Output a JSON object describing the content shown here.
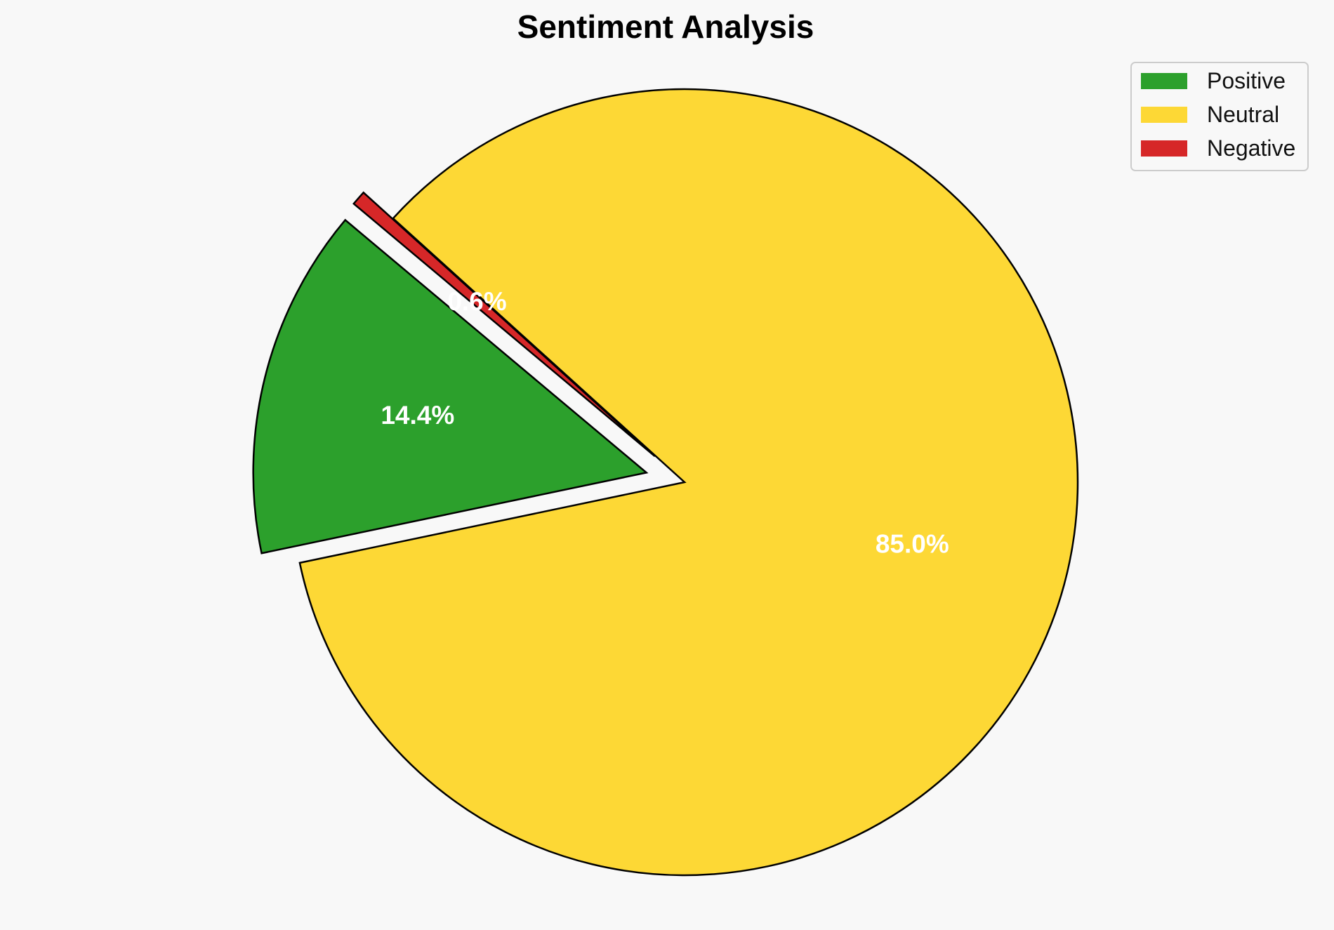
{
  "chart_data": {
    "type": "pie",
    "title": "Sentiment Analysis",
    "start_angle_deg": 140,
    "direction": "counterclockwise",
    "slices": [
      {
        "name": "Positive",
        "value": 14.4,
        "label": "14.4%",
        "color": "#2ca02c",
        "exploded": true
      },
      {
        "name": "Neutral",
        "value": 85.0,
        "label": "85.0%",
        "color": "#fdd835",
        "exploded": false
      },
      {
        "name": "Negative",
        "value": 0.6,
        "label": "0.6%",
        "color": "#d62728",
        "exploded": true
      }
    ],
    "legend": {
      "position": "top-right",
      "entries": [
        "Positive",
        "Neutral",
        "Negative"
      ]
    },
    "edge_color": "#000000",
    "background": "#f8f8f8"
  }
}
